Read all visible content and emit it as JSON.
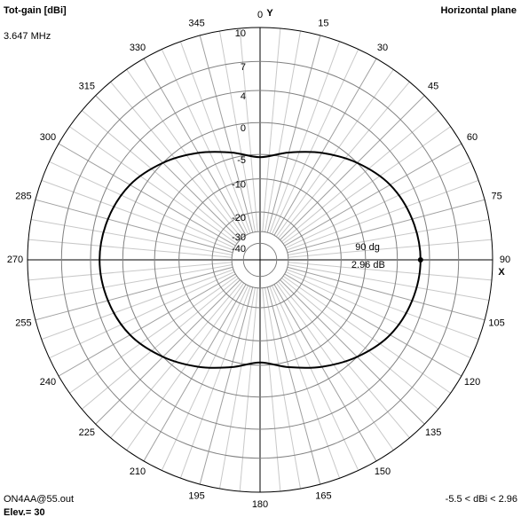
{
  "chart_data": {
    "type": "polar",
    "title": "Tot-gain [dBi]",
    "subtitle": "Horizontal plane",
    "frequency": "3.647 MHz",
    "file": "ON4AA@55.out",
    "elevation": "Elev.= 30",
    "range_note": "-5.5 < dBi < 2.96",
    "y_axis_label": "Y",
    "x_axis_label": "X",
    "radial_scale": "arrl-log",
    "rlim": [
      -40,
      10
    ],
    "rticks": [
      10,
      7,
      4,
      0,
      -5,
      -10,
      -20,
      -30,
      -40
    ],
    "angles": [
      0,
      15,
      30,
      45,
      60,
      75,
      90,
      105,
      120,
      135,
      150,
      165,
      180,
      195,
      210,
      225,
      240,
      255,
      270,
      285,
      300,
      315,
      330,
      345
    ],
    "series": [
      {
        "name": "Tot-gain",
        "color": "#000000",
        "values": [
          -5.5,
          -4.0,
          -2.0,
          0.0,
          1.7,
          2.6,
          2.96,
          2.6,
          1.7,
          0.0,
          -2.0,
          -4.0,
          -5.5,
          -4.0,
          -2.0,
          0.0,
          1.7,
          2.6,
          2.96,
          2.6,
          1.7,
          0.0,
          -2.0,
          -4.0
        ]
      }
    ],
    "marker": {
      "angle": 90,
      "value": 2.96,
      "labels": [
        "90 dg",
        "2.96 dB"
      ]
    }
  }
}
